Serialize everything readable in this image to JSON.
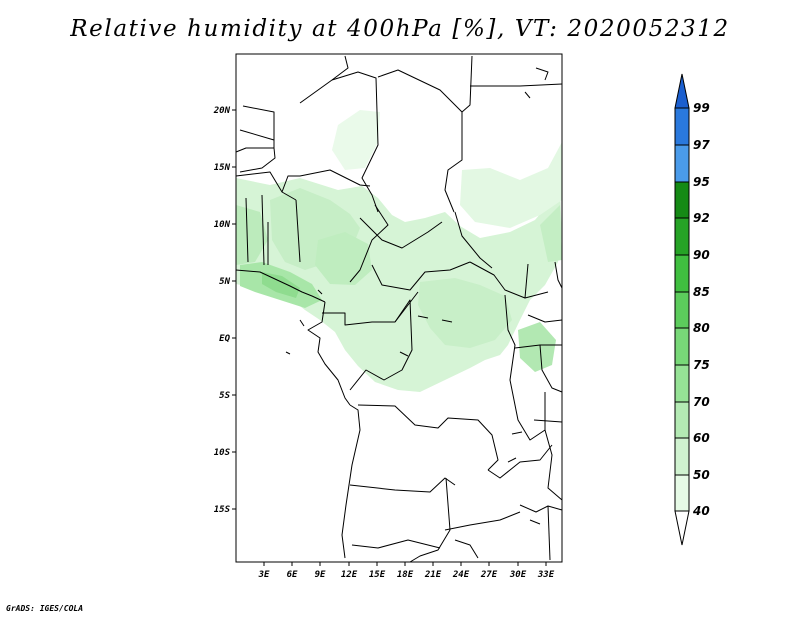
{
  "title": "Relative humidity at 400hPa [%], VT: 2020052312",
  "credit": "GrADS: IGES/COLA",
  "map": {
    "lat_labels": [
      "20N",
      "15N",
      "10N",
      "5N",
      "EQ",
      "5S",
      "10S",
      "15S"
    ],
    "lon_labels": [
      "3E",
      "6E",
      "9E",
      "12E",
      "15E",
      "18E",
      "21E",
      "24E",
      "27E",
      "30E",
      "33E"
    ],
    "lat_range": [
      -20,
      25
    ],
    "lon_range": [
      0,
      35
    ]
  },
  "colorbar": {
    "levels": [
      "40",
      "50",
      "60",
      "70",
      "75",
      "80",
      "85",
      "90",
      "92",
      "95",
      "97",
      "99"
    ],
    "colors": [
      "#e6fae6",
      "#d0f2d0",
      "#b4eab4",
      "#96e296",
      "#78d878",
      "#5ccc5c",
      "#40bf40",
      "#26a326",
      "#158a15",
      "#4a9bea",
      "#2a79dd",
      "#1b5fcf"
    ]
  }
}
